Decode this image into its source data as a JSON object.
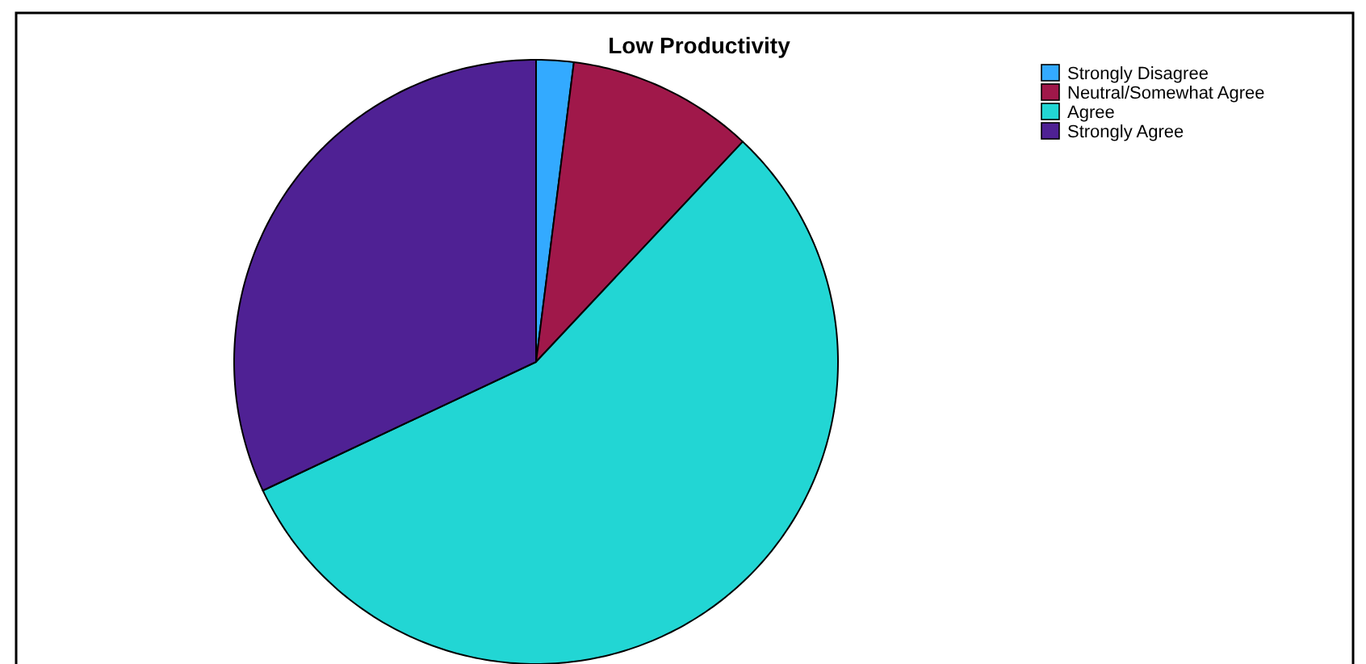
{
  "chart_data": {
    "type": "pie",
    "title": "Low Productivity",
    "categories": [
      "Strongly Disagree",
      "Neutral/Somewhat Agree",
      "Agree",
      "Strongly Agree"
    ],
    "values": [
      2,
      10,
      56,
      32
    ],
    "colors": [
      "#33aaff",
      "#a0184a",
      "#22d6d4",
      "#4f2194"
    ],
    "legend": "top right"
  }
}
